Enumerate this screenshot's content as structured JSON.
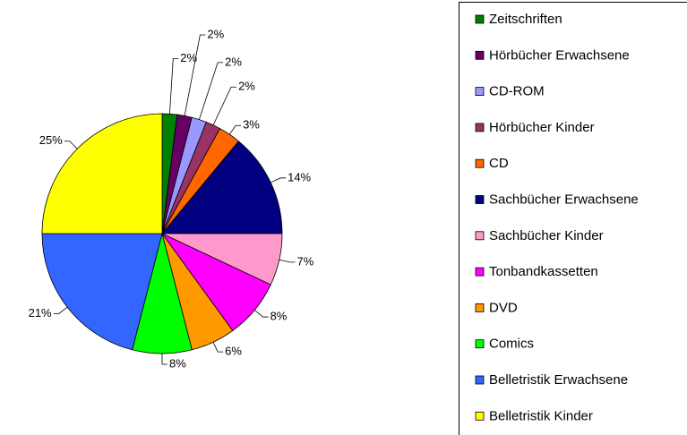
{
  "chart_data": {
    "type": "pie",
    "categories": [
      "Zeitschriften",
      "Hörbücher Erwachsene",
      "CD-ROM",
      "Hörbücher Kinder",
      "CD",
      "Sachbücher Erwachsene",
      "Sachbücher Kinder",
      "Tonbandkassetten",
      "DVD",
      "Comics",
      "Belletristik Erwachsene",
      "Belletristik Kinder"
    ],
    "values": [
      2,
      2,
      2,
      2,
      3,
      14,
      7,
      8,
      6,
      8,
      21,
      25
    ],
    "value_labels": [
      "2%",
      "2%",
      "2%",
      "2%",
      "3%",
      "14%",
      "7%",
      "8%",
      "6%",
      "8%",
      "21%",
      "25%"
    ],
    "colors": [
      "#008000",
      "#660066",
      "#9999ff",
      "#993366",
      "#ff6600",
      "#000080",
      "#ff99cc",
      "#ff00ff",
      "#ff9900",
      "#00ff00",
      "#3366ff",
      "#ffff00"
    ],
    "legend": "right"
  }
}
